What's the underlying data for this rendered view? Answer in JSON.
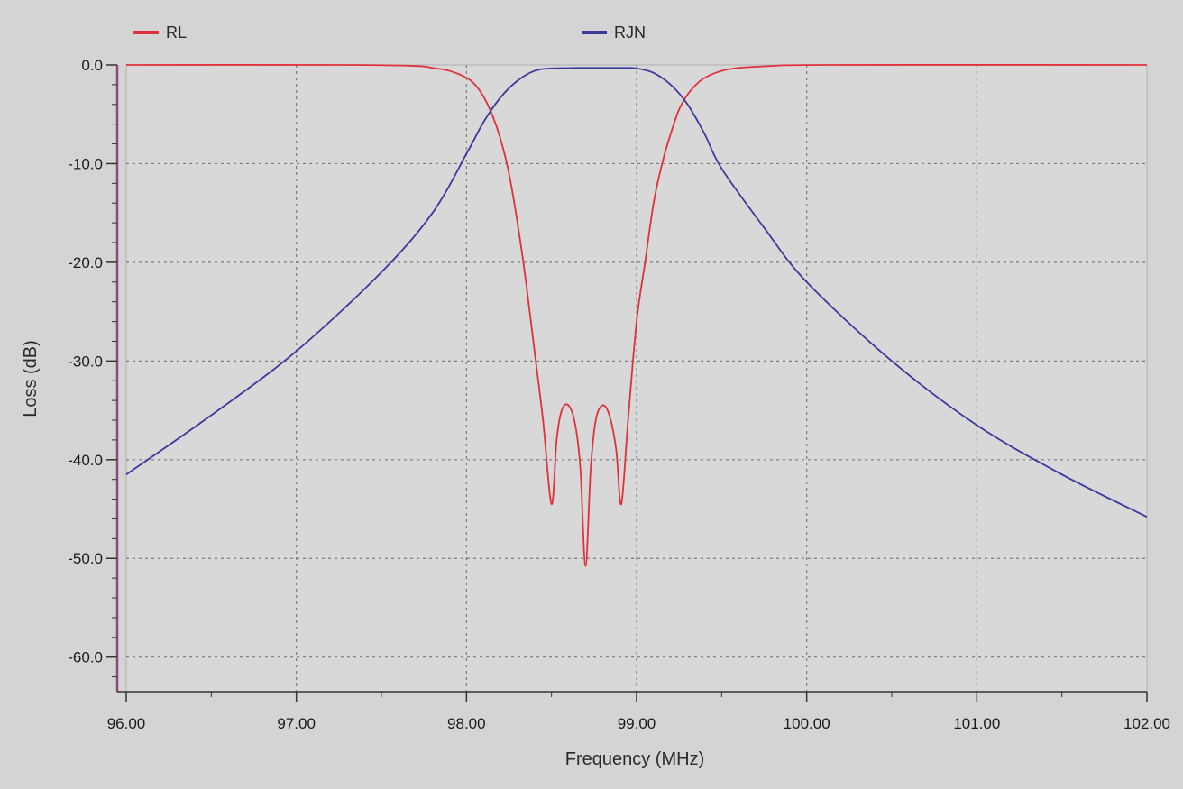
{
  "chart_data": {
    "type": "line",
    "xlabel": "Frequency (MHz)",
    "ylabel": "Loss (dB)",
    "xlim": [
      96.0,
      102.0
    ],
    "ylim": [
      -63.5,
      0
    ],
    "x_ticks": [
      "96.00",
      "97.00",
      "98.00",
      "99.00",
      "100.00",
      "101.00",
      "102.00"
    ],
    "y_ticks": [
      "0.0",
      "-10.0",
      "-20.0",
      "-30.0",
      "-40.0",
      "-50.0",
      "-60.0"
    ],
    "grid": true,
    "legend_position": "top",
    "series": [
      {
        "name": "RL",
        "color": "#e0303a",
        "points": [
          [
            96.0,
            0
          ],
          [
            97.3,
            0
          ],
          [
            97.7,
            -0.1
          ],
          [
            97.8,
            -0.3
          ],
          [
            97.9,
            -0.6
          ],
          [
            98.0,
            -1.3
          ],
          [
            98.05,
            -2.0
          ],
          [
            98.1,
            -3.2
          ],
          [
            98.15,
            -5.0
          ],
          [
            98.2,
            -7.5
          ],
          [
            98.25,
            -11
          ],
          [
            98.3,
            -16
          ],
          [
            98.35,
            -22
          ],
          [
            98.4,
            -29
          ],
          [
            98.45,
            -36
          ],
          [
            98.5,
            -44.5
          ],
          [
            98.53,
            -38
          ],
          [
            98.56,
            -35
          ],
          [
            98.6,
            -34.5
          ],
          [
            98.64,
            -36.5
          ],
          [
            98.67,
            -41
          ],
          [
            98.7,
            -50.8
          ],
          [
            98.73,
            -41
          ],
          [
            98.76,
            -36
          ],
          [
            98.8,
            -34.5
          ],
          [
            98.84,
            -35.5
          ],
          [
            98.88,
            -39
          ],
          [
            98.91,
            -44.5
          ],
          [
            98.95,
            -36
          ],
          [
            99.0,
            -26
          ],
          [
            99.05,
            -20
          ],
          [
            99.1,
            -14
          ],
          [
            99.15,
            -10
          ],
          [
            99.2,
            -7
          ],
          [
            99.25,
            -4.5
          ],
          [
            99.3,
            -3.0
          ],
          [
            99.35,
            -2.0
          ],
          [
            99.4,
            -1.3
          ],
          [
            99.5,
            -0.6
          ],
          [
            99.6,
            -0.3
          ],
          [
            99.8,
            -0.1
          ],
          [
            100.1,
            0
          ],
          [
            102.0,
            0
          ]
        ]
      },
      {
        "name": "RJN",
        "color": "#3a3a9c",
        "points": [
          [
            96.0,
            -41.5
          ],
          [
            96.5,
            -35.5
          ],
          [
            97.0,
            -29
          ],
          [
            97.5,
            -21
          ],
          [
            97.8,
            -15
          ],
          [
            98.0,
            -9
          ],
          [
            98.1,
            -5.8
          ],
          [
            98.2,
            -3.3
          ],
          [
            98.3,
            -1.6
          ],
          [
            98.4,
            -0.6
          ],
          [
            98.5,
            -0.35
          ],
          [
            98.7,
            -0.3
          ],
          [
            98.9,
            -0.3
          ],
          [
            99.0,
            -0.35
          ],
          [
            99.1,
            -0.8
          ],
          [
            99.2,
            -2.0
          ],
          [
            99.3,
            -4.0
          ],
          [
            99.4,
            -7.0
          ],
          [
            99.5,
            -10.5
          ],
          [
            99.75,
            -16.5
          ],
          [
            100.0,
            -22
          ],
          [
            100.5,
            -30
          ],
          [
            101.0,
            -36.5
          ],
          [
            101.5,
            -41.5
          ],
          [
            102.0,
            -45.8
          ]
        ]
      }
    ]
  }
}
